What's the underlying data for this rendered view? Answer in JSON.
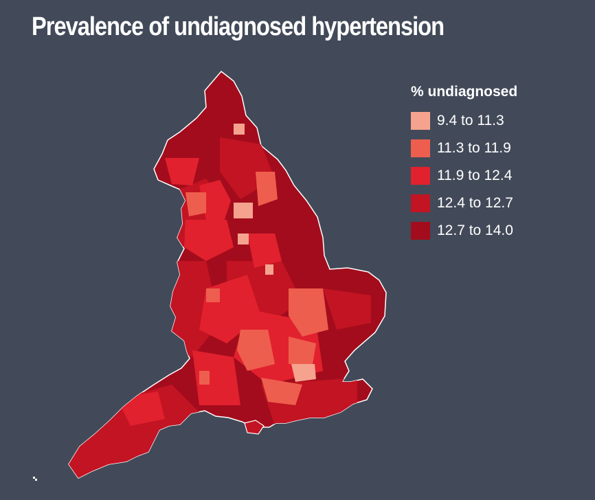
{
  "title": "Prevalence of undiagnosed hypertension",
  "legend": {
    "title": "% undiagnosed",
    "items": [
      {
        "label": "9.4 to 11.3",
        "color": "#f5a38e"
      },
      {
        "label": "11.3 to 11.9",
        "color": "#ee5e4e"
      },
      {
        "label": "11.9 to 12.4",
        "color": "#e2212e"
      },
      {
        "label": "12.4 to 12.7",
        "color": "#c21423"
      },
      {
        "label": "12.7 to 14.0",
        "color": "#a30c1c"
      }
    ]
  },
  "colors": {
    "background": "#424a59",
    "border": "#ffffff"
  }
}
